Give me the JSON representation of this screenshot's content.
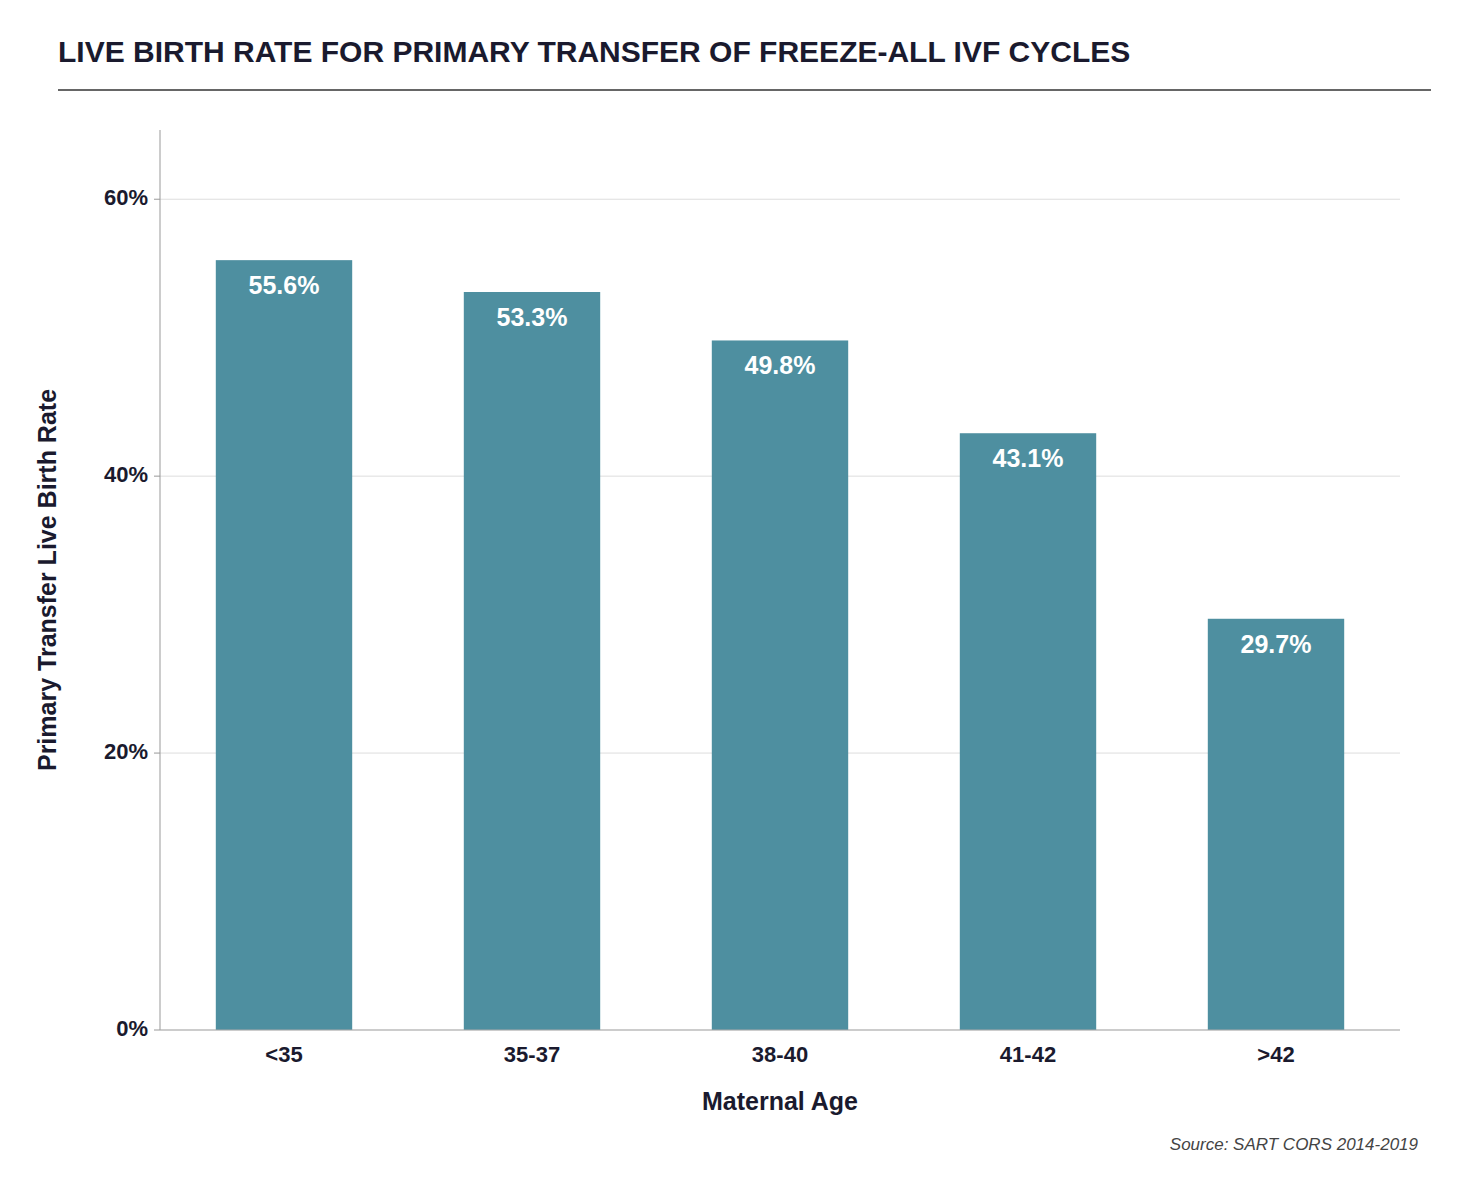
{
  "chart_data": {
    "type": "bar",
    "title": "LIVE BIRTH RATE FOR PRIMARY TRANSFER OF FREEZE-ALL IVF CYCLES",
    "categories": [
      "<35",
      "35-37",
      "38-40",
      "41-42",
      ">42"
    ],
    "values": [
      55.6,
      53.3,
      49.8,
      43.1,
      29.7
    ],
    "value_labels": [
      "55.6%",
      "53.3%",
      "49.8%",
      "43.1%",
      "29.7%"
    ],
    "color": "#4E8FA0",
    "xlabel": "Maternal Age",
    "ylabel": "Primary Transfer Live Birth Rate",
    "ylim": [
      0,
      65
    ],
    "yticks": [
      {
        "value": 0,
        "label": "0%"
      },
      {
        "value": 20,
        "label": "20%"
      },
      {
        "value": 40,
        "label": "40%"
      },
      {
        "value": 60,
        "label": "60%"
      }
    ],
    "grid": true,
    "data_labels": true,
    "source": "Source: SART CORS 2014-2019"
  }
}
